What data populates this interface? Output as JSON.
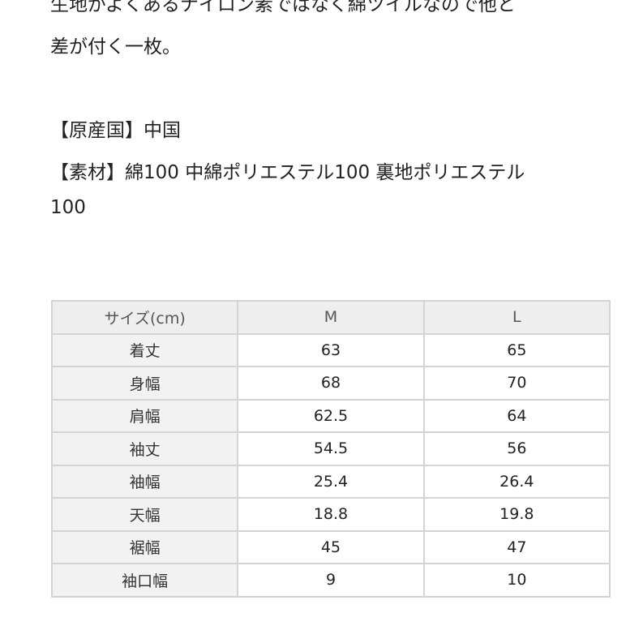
{
  "description": {
    "line1": "生地がよくあるナイロン素ではなく綿ツイルなので他と",
    "line2": "差が付く一枚。",
    "origin": "【原産国】中国",
    "material": "【素材】綿100 中綿ポリエステル100 裏地ポリエステル",
    "material_cont": "100"
  },
  "size_table": {
    "headers": [
      "サイズ(cm)",
      "M",
      "L"
    ],
    "rows": [
      [
        "着丈",
        "63",
        "65"
      ],
      [
        "身幅",
        "68",
        "70"
      ],
      [
        "肩幅",
        "62.5",
        "64"
      ],
      [
        "袖丈",
        "54.5",
        "56"
      ],
      [
        "袖幅",
        "25.4",
        "26.4"
      ],
      [
        "天幅",
        "18.8",
        "19.8"
      ],
      [
        "裾幅",
        "45",
        "47"
      ],
      [
        "袖口幅",
        "9",
        "10"
      ]
    ]
  }
}
